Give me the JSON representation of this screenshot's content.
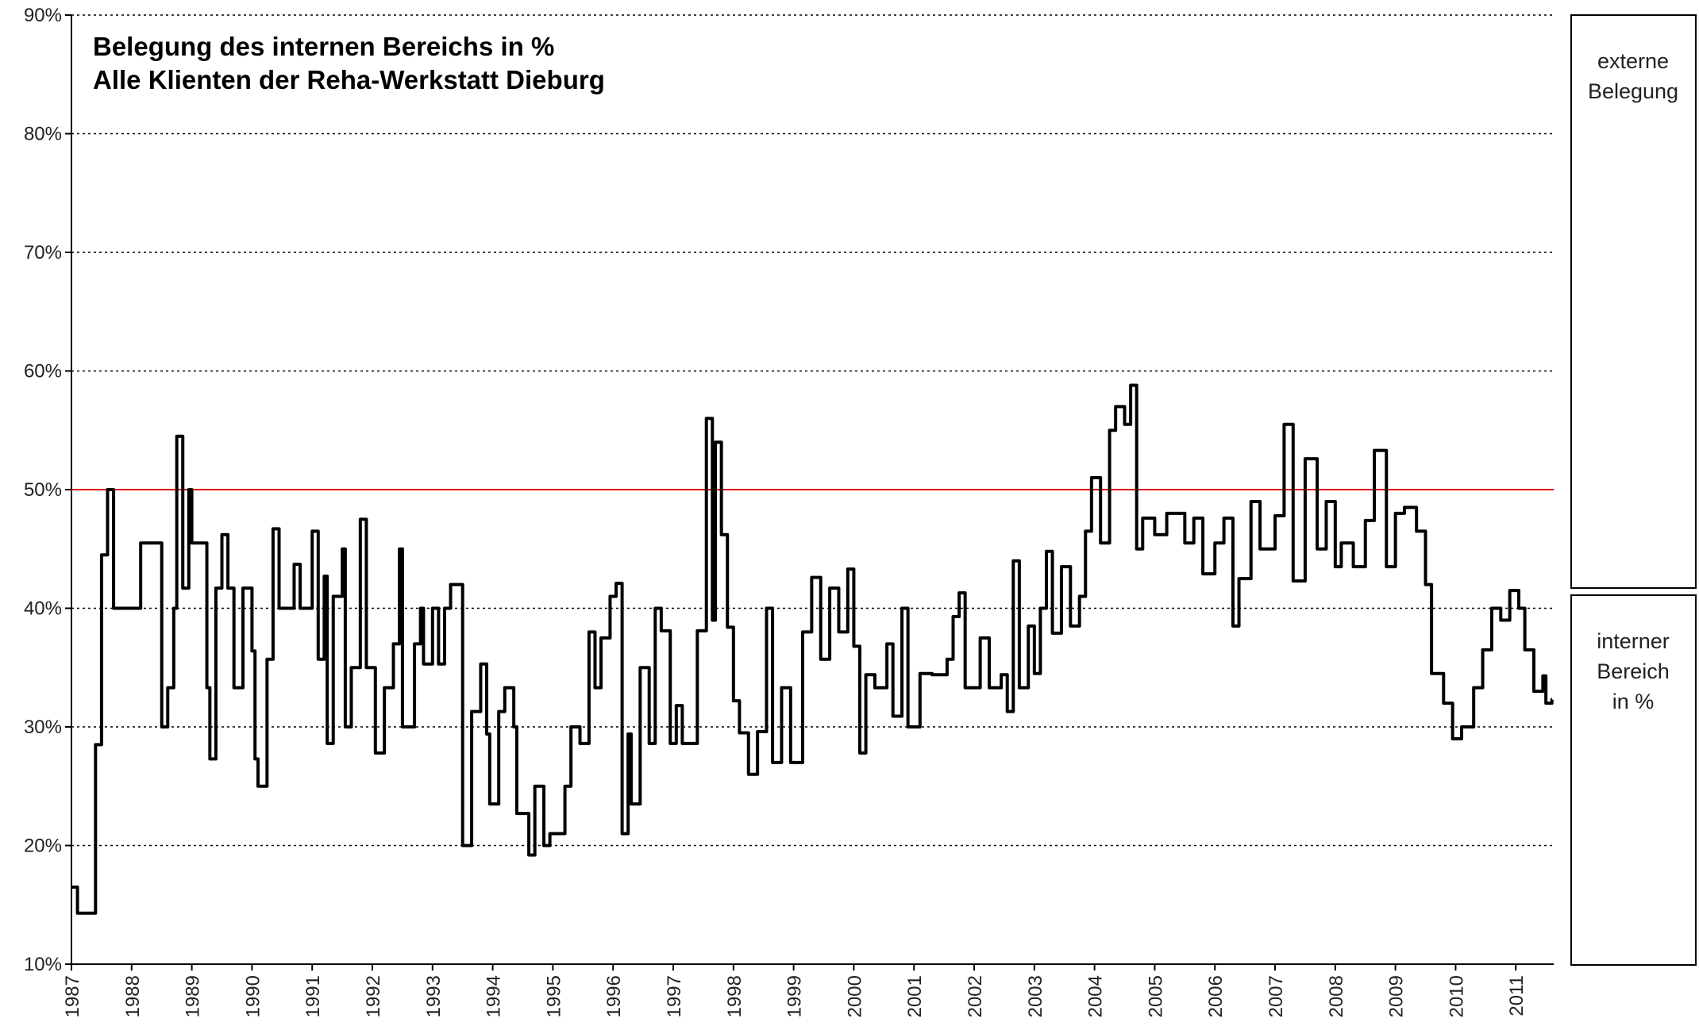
{
  "chart_data": {
    "type": "step",
    "title": "Belegung des internen Bereichs in %",
    "subtitle": "Alle Klienten der Reha-Werkstatt Dieburg",
    "series": [
      {
        "name": "interner Bereich",
        "color": "#000000",
        "x": [
          1987.0,
          1987.1,
          1987.4,
          1987.5,
          1987.6,
          1987.7,
          1988.15,
          1988.5,
          1988.6,
          1988.7,
          1988.75,
          1988.85,
          1988.95,
          1989.0,
          1989.25,
          1989.3,
          1989.4,
          1989.5,
          1989.6,
          1989.7,
          1989.85,
          1990.0,
          1990.05,
          1990.1,
          1990.25,
          1990.35,
          1990.45,
          1990.7,
          1990.8,
          1991.0,
          1991.1,
          1991.2,
          1991.25,
          1991.35,
          1991.5,
          1991.55,
          1991.65,
          1991.8,
          1991.9,
          1992.05,
          1992.2,
          1992.35,
          1992.45,
          1992.5,
          1992.7,
          1992.8,
          1992.85,
          1993.0,
          1993.1,
          1993.2,
          1993.3,
          1993.5,
          1993.65,
          1993.8,
          1993.9,
          1993.95,
          1994.1,
          1994.2,
          1994.35,
          1994.4,
          1994.6,
          1994.7,
          1994.85,
          1994.95,
          1995.2,
          1995.3,
          1995.45,
          1995.6,
          1995.7,
          1995.8,
          1995.95,
          1996.05,
          1996.15,
          1996.25,
          1996.3,
          1996.45,
          1996.6,
          1996.7,
          1996.8,
          1996.95,
          1997.05,
          1997.15,
          1997.4,
          1997.55,
          1997.65,
          1997.7,
          1997.8,
          1997.9,
          1998.0,
          1998.1,
          1998.25,
          1998.4,
          1998.55,
          1998.65,
          1998.8,
          1998.95,
          1999.15,
          1999.3,
          1999.45,
          1999.6,
          1999.75,
          1999.9,
          2000.0,
          2000.1,
          2000.2,
          2000.35,
          2000.55,
          2000.65,
          2000.8,
          2000.9,
          2001.1,
          2001.3,
          2001.55,
          2001.65,
          2001.75,
          2001.85,
          2002.1,
          2002.25,
          2002.45,
          2002.55,
          2002.65,
          2002.75,
          2002.9,
          2003.0,
          2003.1,
          2003.2,
          2003.3,
          2003.45,
          2003.6,
          2003.75,
          2003.85,
          2003.95,
          2004.1,
          2004.25,
          2004.35,
          2004.5,
          2004.6,
          2004.7,
          2004.8,
          2005.0,
          2005.2,
          2005.5,
          2005.65,
          2005.8,
          2006.0,
          2006.15,
          2006.3,
          2006.4,
          2006.6,
          2006.75,
          2007.0,
          2007.15,
          2007.3,
          2007.5,
          2007.7,
          2007.85,
          2008.0,
          2008.1,
          2008.3,
          2008.5,
          2008.65,
          2008.85,
          2009.0,
          2009.15,
          2009.35,
          2009.5,
          2009.6,
          2009.8,
          2009.95,
          2010.1,
          2010.3,
          2010.45,
          2010.6,
          2010.75,
          2010.9,
          2011.05,
          2011.15,
          2011.3,
          2011.45,
          2011.5,
          2011.6
        ],
        "values": [
          16.5,
          14.3,
          28.5,
          44.5,
          50,
          40,
          45.5,
          30,
          33.3,
          40,
          54.5,
          41.7,
          50,
          45.5,
          33.3,
          27.3,
          41.7,
          46.2,
          41.7,
          33.3,
          41.7,
          36.4,
          27.3,
          25,
          35.7,
          46.7,
          40,
          43.7,
          40,
          46.5,
          35.7,
          42.7,
          28.6,
          41,
          45,
          30,
          35,
          47.5,
          35,
          27.8,
          33.3,
          37,
          45,
          30,
          37,
          40,
          35.3,
          40,
          35.3,
          40,
          42,
          20,
          31.3,
          35.3,
          29.4,
          23.5,
          31.3,
          33.3,
          30,
          22.7,
          19.2,
          25,
          20,
          21,
          25,
          30,
          28.6,
          38,
          33.3,
          37.5,
          41,
          42.1,
          21,
          29.4,
          23.5,
          35,
          28.6,
          40,
          38.1,
          28.6,
          31.8,
          28.6,
          38.1,
          56,
          39,
          54,
          46.2,
          38.4,
          32.2,
          29.5,
          26,
          29.6,
          40,
          27,
          33.3,
          27,
          38,
          42.6,
          35.7,
          41.7,
          38,
          43.3,
          36.8,
          27.8,
          34.4,
          33.3,
          37,
          30.9,
          40,
          30,
          34.5,
          34.4,
          35.7,
          39.3,
          41.3,
          33.3,
          37.5,
          33.3,
          34.4,
          31.3,
          44,
          33.3,
          38.5,
          34.5,
          40,
          44.8,
          37.9,
          43.5,
          38.5,
          41,
          46.5,
          51,
          45.5,
          55,
          57,
          55.5,
          58.8,
          45,
          47.6,
          46.2,
          48,
          45.5,
          47.6,
          42.9,
          45.5,
          47.6,
          38.5,
          42.5,
          49,
          45,
          47.8,
          55.5,
          42.3,
          52.6,
          45,
          49,
          43.5,
          45.5,
          43.5,
          47.4,
          53.3,
          43.5,
          48,
          48.5,
          46.5,
          42,
          34.5,
          32,
          29,
          30,
          33.3,
          36.5,
          40,
          39,
          41.5,
          40,
          36.5,
          33,
          34.3,
          32,
          32.3
        ]
      }
    ],
    "reference_line": {
      "value": 50,
      "color": "#e00000"
    },
    "xlim": [
      1987,
      2011.63
    ],
    "xticks": [
      1987,
      1988,
      1989,
      1990,
      1991,
      1992,
      1993,
      1994,
      1995,
      1996,
      1997,
      1998,
      1999,
      2000,
      2001,
      2002,
      2003,
      2004,
      2005,
      2006,
      2007,
      2008,
      2009,
      2010,
      2011
    ],
    "ylim": [
      10,
      90
    ],
    "yticks": [
      {
        "value": 10,
        "label": "10%"
      },
      {
        "value": 20,
        "label": "20%"
      },
      {
        "value": 30,
        "label": "30%"
      },
      {
        "value": 40,
        "label": "40%"
      },
      {
        "value": 50,
        "label": "50%"
      },
      {
        "value": 60,
        "label": "60%"
      },
      {
        "value": 70,
        "label": "70%"
      },
      {
        "value": 80,
        "label": "80%"
      },
      {
        "value": 90,
        "label": "90%"
      }
    ],
    "grid": true,
    "side_boxes": [
      {
        "lines": [
          "externe",
          "Belegung"
        ]
      },
      {
        "lines": [
          "interner",
          "Bereich",
          "in %"
        ]
      }
    ]
  }
}
